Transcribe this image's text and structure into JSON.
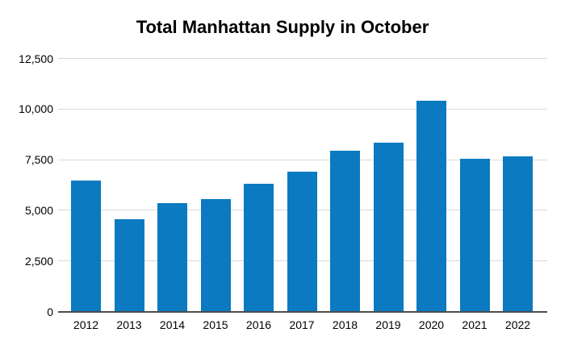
{
  "chart_data": {
    "type": "bar",
    "title": "Total Manhattan Supply in October",
    "categories": [
      "2012",
      "2013",
      "2014",
      "2015",
      "2016",
      "2017",
      "2018",
      "2019",
      "2020",
      "2021",
      "2022"
    ],
    "values": [
      6450,
      4550,
      5350,
      5550,
      6300,
      6900,
      7950,
      8350,
      10400,
      7550,
      7650
    ],
    "xlabel": "",
    "ylabel": "",
    "ylim": [
      0,
      12500
    ],
    "yticks": [
      0,
      2500,
      5000,
      7500,
      10000,
      12500
    ],
    "ytick_labels": [
      "0",
      "2,500",
      "5,000",
      "7,500",
      "10,000",
      "12,500"
    ],
    "grid": true,
    "legend": "none"
  },
  "colors": {
    "bar": "#0B7AC0",
    "gridline": "#D9D9D9",
    "axis_line": "#4D4D4D",
    "text": "#000000",
    "background": "#FFFFFF"
  }
}
